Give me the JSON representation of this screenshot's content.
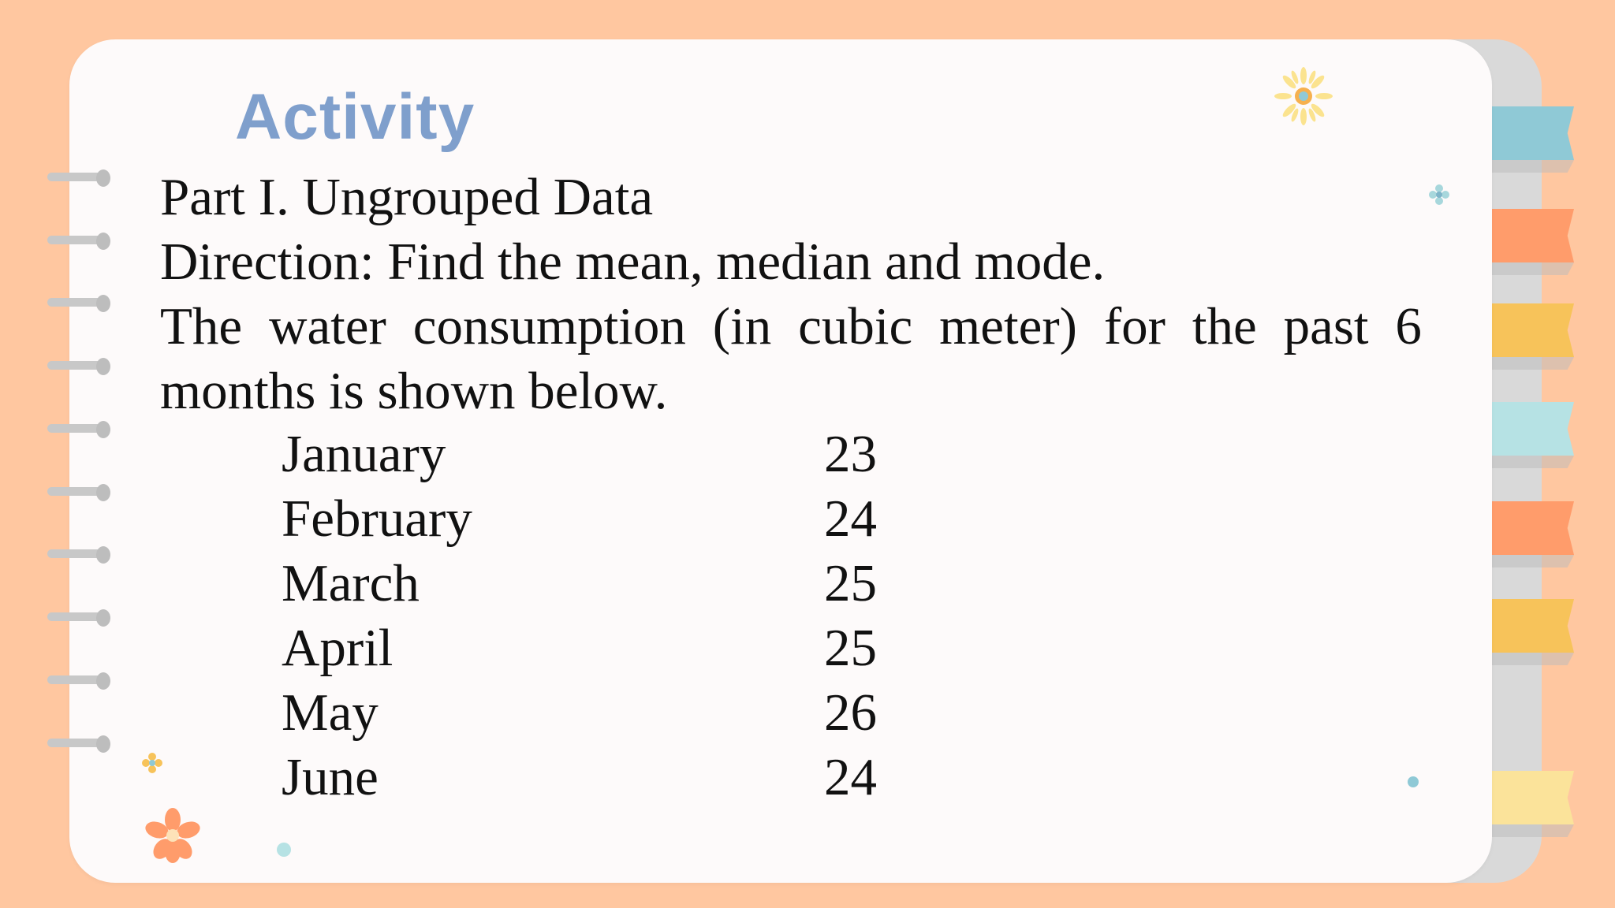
{
  "slide": {
    "title": "Activity",
    "part": "Part I. Ungrouped Data",
    "direction": "Direction: Find the mean, median and mode.",
    "description_line1_words": [
      "The",
      "water",
      "consumption",
      "(in",
      "cubic",
      "meter)",
      "for",
      "the",
      "past",
      "6"
    ],
    "description_line2": "months is shown below.",
    "table": [
      {
        "month": "January",
        "value": "23"
      },
      {
        "month": "February",
        "value": "24"
      },
      {
        "month": "March",
        "value": "25"
      },
      {
        "month": "April",
        "value": "25"
      },
      {
        "month": "May",
        "value": "26"
      },
      {
        "month": "June",
        "value": "24"
      }
    ]
  },
  "colors": {
    "background": "#ffc7a0",
    "card": "#fdfafa",
    "title": "#7f9fcc",
    "tabs": [
      "#8fc9d6",
      "#ff9c6b",
      "#f7c35a",
      "#b6e2e4",
      "#ff9c6b",
      "#f7c35a",
      "#fbe39a"
    ]
  },
  "icons": [
    "sun-flower-icon",
    "small-flower-icon",
    "orange-flower-icon",
    "dot-icon"
  ]
}
